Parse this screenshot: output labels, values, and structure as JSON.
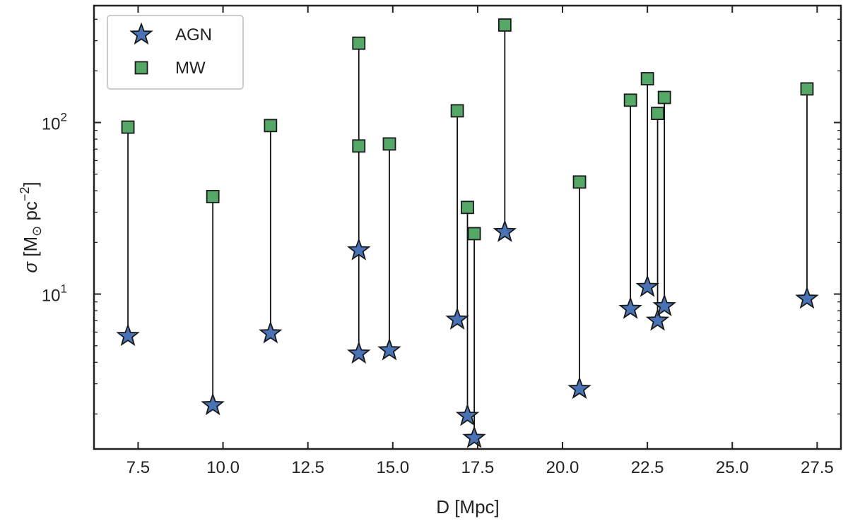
{
  "chart_data": {
    "type": "scatter",
    "title": "",
    "xlabel": "D [Mpc]",
    "ylabel": "σ [M⊙ pc⁻²]",
    "ylabel_parts": {
      "symbol": "σ",
      "open": " [M",
      "sub": "⊙",
      "unit": " pc",
      "sup": "−2",
      "close": "]"
    },
    "x_scale": "linear",
    "y_scale": "log",
    "xlim": [
      6.2,
      28.2
    ],
    "ylim": [
      1.25,
      480
    ],
    "x_ticks": [
      7.5,
      10.0,
      12.5,
      15.0,
      17.5,
      20.0,
      22.5,
      25.0,
      27.5
    ],
    "x_tick_labels": [
      "7.5",
      "10.0",
      "12.5",
      "15.0",
      "17.5",
      "20.0",
      "22.5",
      "25.0",
      "27.5"
    ],
    "y_major_ticks": [
      10,
      100
    ],
    "y_tick_labels": [
      {
        "value": 10,
        "base": "10",
        "exp": "1"
      },
      {
        "value": 100,
        "base": "10",
        "exp": "2"
      }
    ],
    "grid": false,
    "legend_position": "top-left",
    "colors": {
      "AGN": "#4a73b5",
      "MW": "#55a868",
      "line": "#111111",
      "axes": "#222222"
    },
    "series": [
      {
        "name": "AGN",
        "marker": "star",
        "points": [
          {
            "x": 7.2,
            "y": 5.7
          },
          {
            "x": 9.7,
            "y": 2.25
          },
          {
            "x": 11.4,
            "y": 5.9
          },
          {
            "x": 14.0,
            "y": 18.0
          },
          {
            "x": 14.0,
            "y": 4.5
          },
          {
            "x": 14.9,
            "y": 4.7
          },
          {
            "x": 16.9,
            "y": 7.1
          },
          {
            "x": 17.2,
            "y": 1.95
          },
          {
            "x": 17.4,
            "y": 1.45
          },
          {
            "x": 18.3,
            "y": 23.0
          },
          {
            "x": 20.5,
            "y": 2.8
          },
          {
            "x": 22.0,
            "y": 8.2
          },
          {
            "x": 22.5,
            "y": 11.0
          },
          {
            "x": 22.8,
            "y": 7.0
          },
          {
            "x": 23.0,
            "y": 8.5
          },
          {
            "x": 27.2,
            "y": 9.4
          }
        ]
      },
      {
        "name": "MW",
        "marker": "square",
        "points": [
          {
            "x": 7.2,
            "y": 94
          },
          {
            "x": 9.7,
            "y": 37
          },
          {
            "x": 11.4,
            "y": 96
          },
          {
            "x": 14.0,
            "y": 290
          },
          {
            "x": 14.0,
            "y": 73
          },
          {
            "x": 14.9,
            "y": 75
          },
          {
            "x": 16.9,
            "y": 117
          },
          {
            "x": 17.2,
            "y": 32
          },
          {
            "x": 17.4,
            "y": 22.5
          },
          {
            "x": 18.3,
            "y": 370
          },
          {
            "x": 20.5,
            "y": 45
          },
          {
            "x": 22.0,
            "y": 135
          },
          {
            "x": 22.5,
            "y": 180
          },
          {
            "x": 22.8,
            "y": 113
          },
          {
            "x": 23.0,
            "y": 140
          },
          {
            "x": 27.2,
            "y": 157
          }
        ]
      }
    ],
    "connections": [
      {
        "x": 7.2,
        "y1": 5.7,
        "y2": 94
      },
      {
        "x": 9.7,
        "y1": 2.25,
        "y2": 37
      },
      {
        "x": 11.4,
        "y1": 5.9,
        "y2": 96
      },
      {
        "x": 14.0,
        "y1": 4.5,
        "y2": 290
      },
      {
        "x": 14.9,
        "y1": 4.7,
        "y2": 75
      },
      {
        "x": 16.9,
        "y1": 7.1,
        "y2": 117
      },
      {
        "x": 17.2,
        "y1": 1.95,
        "y2": 32
      },
      {
        "x": 17.4,
        "y1": 1.45,
        "y2": 22.5
      },
      {
        "x": 18.3,
        "y1": 23.0,
        "y2": 370
      },
      {
        "x": 20.5,
        "y1": 2.8,
        "y2": 45
      },
      {
        "x": 22.0,
        "y1": 8.2,
        "y2": 135
      },
      {
        "x": 22.5,
        "y1": 11.0,
        "y2": 180
      },
      {
        "x": 22.8,
        "y1": 7.0,
        "y2": 113
      },
      {
        "x": 23.0,
        "y1": 8.5,
        "y2": 140
      },
      {
        "x": 27.2,
        "y1": 9.4,
        "y2": 157
      }
    ],
    "legend": [
      {
        "label": "AGN",
        "marker": "star"
      },
      {
        "label": "MW",
        "marker": "square"
      }
    ]
  }
}
